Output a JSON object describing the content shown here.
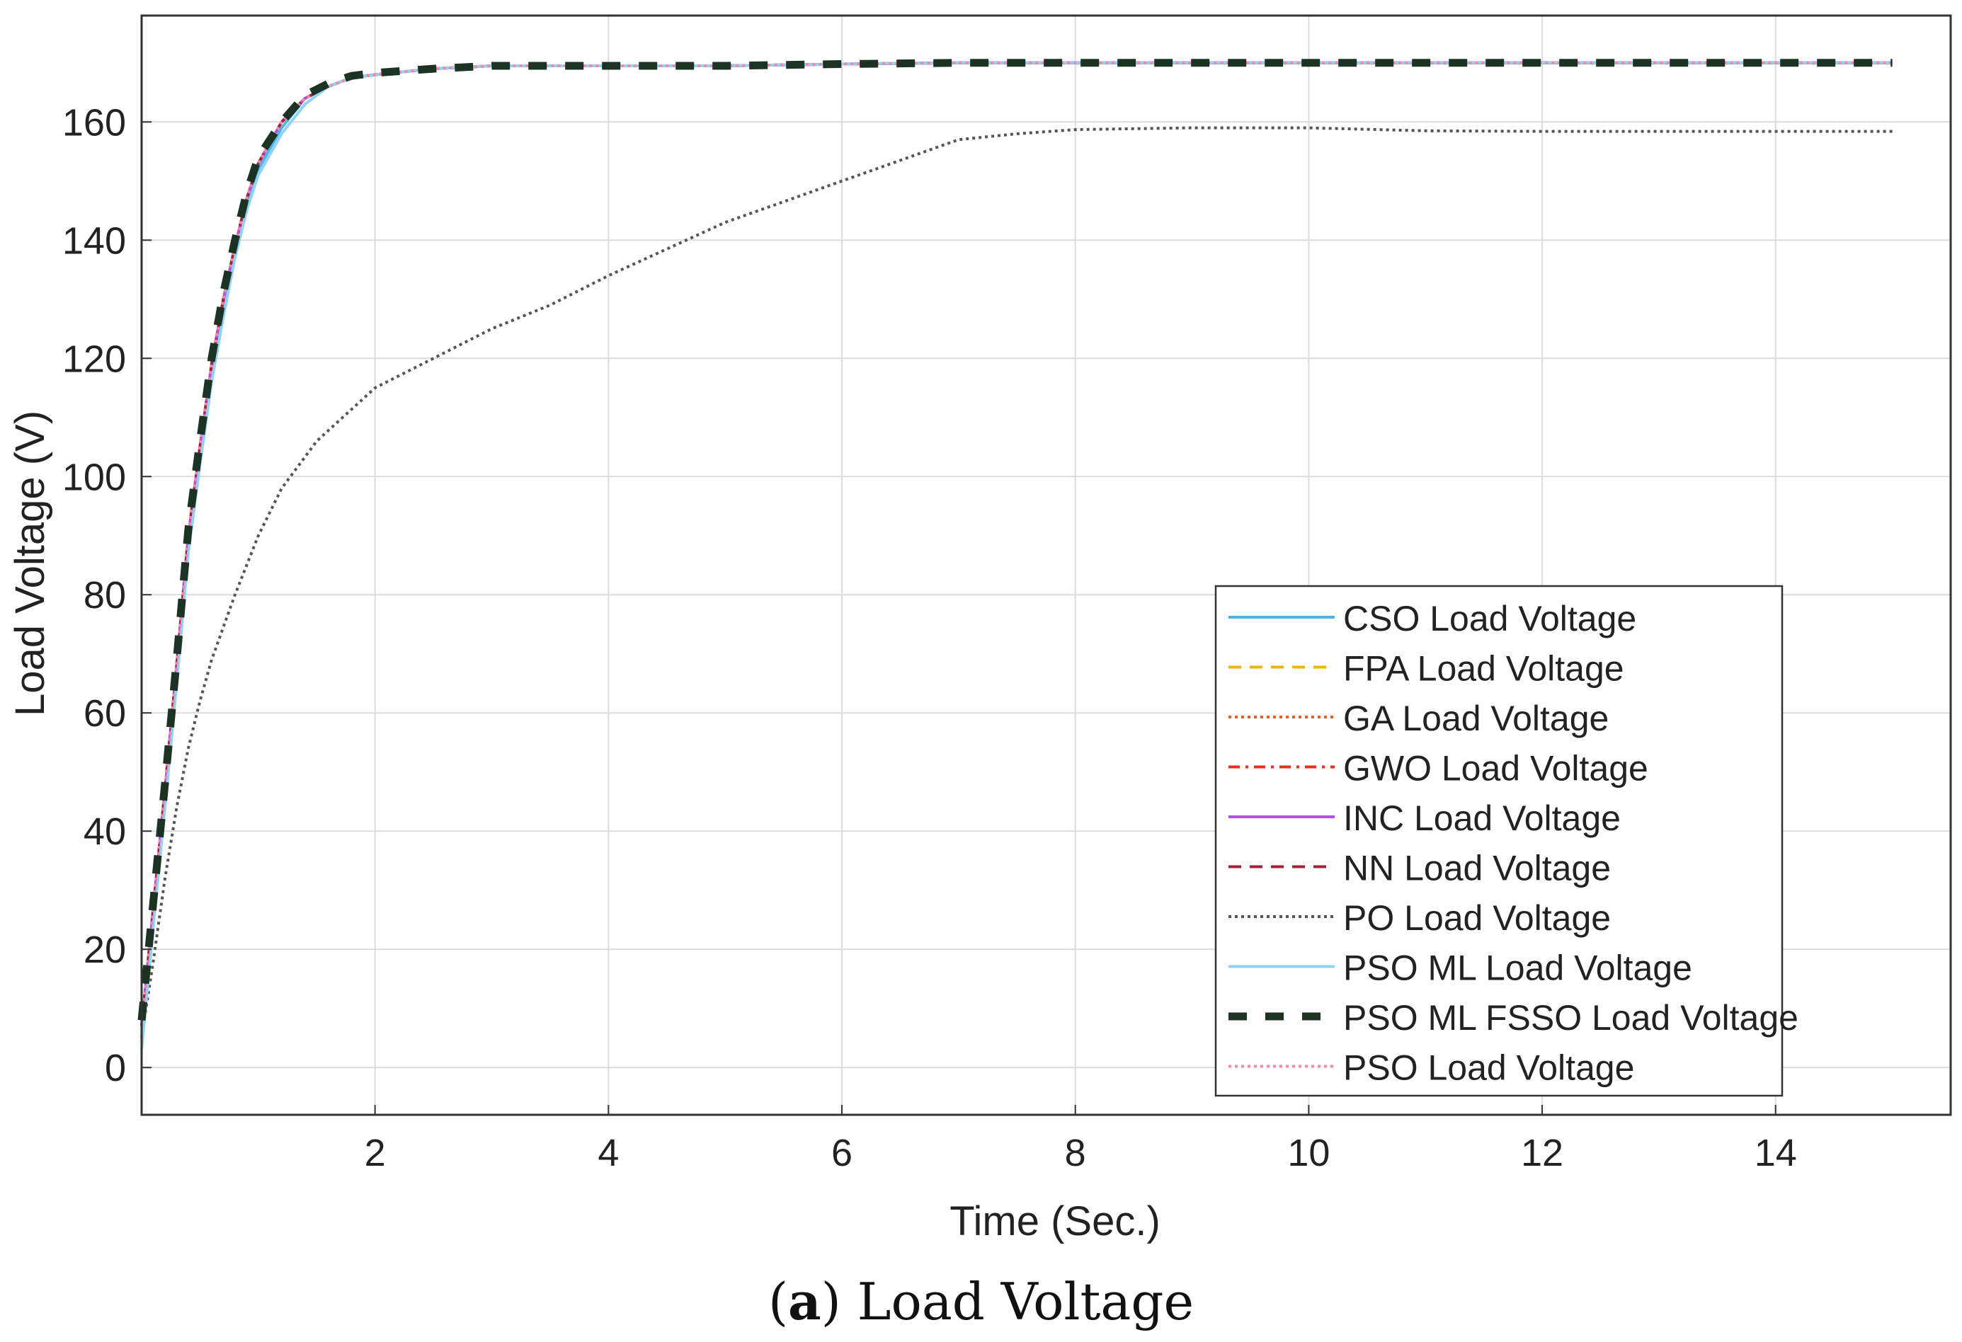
{
  "caption": {
    "prefix": "(",
    "letter": "a",
    "suffix": ") Load Voltage"
  },
  "chart_data": {
    "type": "line",
    "title": "",
    "xlabel": "Time (Sec.)",
    "ylabel": "Load Voltage (V)",
    "xlim": [
      0,
      15.5
    ],
    "ylim": [
      -8,
      178
    ],
    "xticks": [
      2,
      4,
      6,
      8,
      10,
      12,
      14
    ],
    "yticks": [
      0,
      20,
      40,
      60,
      80,
      100,
      120,
      140,
      160
    ],
    "grid": true,
    "legend_position": "bottom-right",
    "series": [
      {
        "name": "CSO Load Voltage",
        "color": "#4fb3e8",
        "style": "solid",
        "x": [
          0,
          0.1,
          0.2,
          0.3,
          0.4,
          0.5,
          0.6,
          0.7,
          0.8,
          0.9,
          1.0,
          1.2,
          1.4,
          1.6,
          1.8,
          2.0,
          2.5,
          3,
          4,
          5,
          6,
          7,
          8,
          9,
          10,
          11,
          12,
          13,
          14,
          15
        ],
        "y": [
          5,
          25,
          45,
          66,
          88,
          103,
          117,
          128,
          138,
          146,
          152,
          159,
          164,
          166,
          167.5,
          168,
          169,
          169.5,
          169.5,
          169.5,
          169.8,
          170,
          170,
          170,
          170,
          170,
          170,
          170,
          170,
          170
        ]
      },
      {
        "name": "FPA Load Voltage",
        "color": "#f0b400",
        "style": "dashed",
        "x": [
          0,
          0.1,
          0.2,
          0.3,
          0.4,
          0.5,
          0.6,
          0.7,
          0.8,
          0.9,
          1.0,
          1.2,
          1.4,
          1.6,
          1.8,
          2.0,
          2.5,
          3,
          4,
          5,
          6,
          7,
          8,
          9,
          10,
          11,
          12,
          13,
          14,
          15
        ],
        "y": [
          7,
          27,
          47,
          68,
          90,
          105,
          119,
          130,
          139,
          147,
          153,
          160,
          164,
          166,
          167.5,
          168,
          169,
          169.5,
          169.5,
          169.5,
          169.8,
          170,
          170,
          170,
          170,
          170,
          170,
          170,
          170,
          170
        ]
      },
      {
        "name": "GA Load Voltage",
        "color": "#e2622b",
        "style": "dotted",
        "x": [
          0,
          0.1,
          0.2,
          0.3,
          0.4,
          0.5,
          0.6,
          0.7,
          0.8,
          0.9,
          1.0,
          1.2,
          1.4,
          1.6,
          1.8,
          2.0,
          2.5,
          3,
          4,
          5,
          6,
          7,
          8,
          9,
          10,
          11,
          12,
          13,
          14,
          15
        ],
        "y": [
          7,
          27,
          47,
          68,
          90,
          105,
          119,
          130,
          139,
          147,
          153,
          160,
          164,
          166,
          167.5,
          168,
          169,
          169.5,
          169.5,
          169.5,
          169.8,
          170,
          170,
          170,
          170,
          170,
          170,
          170,
          170,
          170
        ]
      },
      {
        "name": "GWO Load Voltage",
        "color": "#e8301e",
        "style": "dashdot",
        "x": [
          0,
          0.1,
          0.2,
          0.3,
          0.4,
          0.5,
          0.6,
          0.7,
          0.8,
          0.9,
          1.0,
          1.2,
          1.4,
          1.6,
          1.8,
          2.0,
          2.5,
          3,
          4,
          5,
          6,
          7,
          8,
          9,
          10,
          11,
          12,
          13,
          14,
          15
        ],
        "y": [
          7,
          27,
          47,
          68,
          90,
          105,
          119,
          130,
          139,
          147,
          153,
          160,
          164,
          166,
          167.5,
          168,
          169,
          169.5,
          169.5,
          169.5,
          169.8,
          170,
          170,
          170,
          170,
          170,
          170,
          170,
          170,
          170
        ]
      },
      {
        "name": "INC Load Voltage",
        "color": "#b44fe0",
        "style": "solid",
        "x": [
          0,
          0.1,
          0.2,
          0.3,
          0.4,
          0.5,
          0.6,
          0.7,
          0.8,
          0.9,
          1.0,
          1.2,
          1.4,
          1.6,
          1.8,
          2.0,
          2.5,
          3,
          4,
          5,
          6,
          7,
          8,
          9,
          10,
          11,
          12,
          13,
          14,
          15
        ],
        "y": [
          7,
          27,
          47,
          68,
          90,
          105,
          119,
          130,
          139,
          147,
          153,
          160,
          164,
          166,
          167.5,
          168,
          169,
          169.5,
          169.5,
          169.5,
          169.8,
          170,
          170,
          170,
          170,
          170,
          170,
          170,
          170,
          170
        ]
      },
      {
        "name": "NN Load Voltage",
        "color": "#a3203a",
        "style": "dashed",
        "x": [
          0,
          0.1,
          0.2,
          0.3,
          0.4,
          0.5,
          0.6,
          0.7,
          0.8,
          0.9,
          1.0,
          1.2,
          1.4,
          1.6,
          1.8,
          2.0,
          2.5,
          3,
          4,
          5,
          6,
          7,
          8,
          9,
          10,
          11,
          12,
          13,
          14,
          15
        ],
        "y": [
          7,
          27,
          47,
          68,
          90,
          105,
          119,
          130,
          139,
          147,
          153,
          160,
          164,
          166,
          167.5,
          168,
          169,
          169.5,
          169.5,
          169.5,
          169.8,
          170,
          170,
          170,
          170,
          170,
          170,
          170,
          170,
          170
        ]
      },
      {
        "name": "PO Load Voltage",
        "color": "#555555",
        "style": "dotted",
        "x": [
          0,
          0.1,
          0.2,
          0.3,
          0.4,
          0.5,
          0.6,
          0.8,
          1.0,
          1.2,
          1.5,
          2.0,
          2.5,
          3,
          3.5,
          4,
          5,
          6,
          7,
          7.5,
          8,
          9,
          10,
          11,
          12,
          13,
          14,
          15
        ],
        "y": [
          5,
          18,
          32,
          44,
          54,
          62,
          69,
          80,
          90,
          98,
          106,
          115,
          120,
          125,
          129,
          134,
          143,
          150,
          157,
          158,
          158.7,
          159,
          159,
          158.5,
          158.4,
          158.4,
          158.4,
          158.4
        ]
      },
      {
        "name": "PSO ML Load Voltage",
        "color": "#8fd3f8",
        "style": "solid",
        "x": [
          0,
          0.1,
          0.2,
          0.3,
          0.4,
          0.5,
          0.6,
          0.7,
          0.8,
          0.9,
          1.0,
          1.2,
          1.4,
          1.6,
          1.8,
          2.0,
          2.5,
          3,
          4,
          5,
          6,
          7,
          8,
          9,
          10,
          11,
          12,
          13,
          14,
          15
        ],
        "y": [
          3,
          24,
          44,
          65,
          87,
          102,
          116,
          127,
          137,
          145,
          151,
          158,
          163,
          166,
          167.5,
          168,
          169,
          169.5,
          169.5,
          169.5,
          169.8,
          170,
          170,
          170,
          170,
          170,
          170,
          170,
          170,
          170
        ]
      },
      {
        "name": "PSO ML FSSO Load Voltage",
        "color": "#1c3324",
        "style": "bold-dashed",
        "x": [
          0,
          0.1,
          0.2,
          0.3,
          0.4,
          0.5,
          0.6,
          0.7,
          0.8,
          0.9,
          1.0,
          1.2,
          1.4,
          1.6,
          1.8,
          2.0,
          2.5,
          3,
          4,
          5,
          6,
          7,
          8,
          9,
          10,
          11,
          12,
          13,
          14,
          15
        ],
        "y": [
          8,
          28,
          48,
          69,
          91,
          106,
          120,
          131,
          140,
          148,
          154,
          160,
          164.5,
          166.5,
          167.8,
          168.3,
          169,
          169.5,
          169.5,
          169.5,
          169.8,
          170,
          170,
          170,
          170,
          170,
          170,
          170,
          170,
          170
        ]
      },
      {
        "name": "PSO Load Voltage",
        "color": "#f08aa8",
        "style": "dotted",
        "x": [
          0,
          0.1,
          0.2,
          0.3,
          0.4,
          0.5,
          0.6,
          0.7,
          0.8,
          0.9,
          1.0,
          1.2,
          1.4,
          1.6,
          1.8,
          2.0,
          2.5,
          3,
          4,
          5,
          6,
          7,
          8,
          9,
          10,
          11,
          12,
          13,
          14,
          15
        ],
        "y": [
          7,
          27,
          47,
          68,
          90,
          105,
          119,
          130,
          139,
          147,
          153,
          160,
          164,
          166,
          167.5,
          168,
          169,
          169.5,
          169.5,
          169.5,
          169.8,
          170,
          170,
          170,
          170,
          170,
          170,
          170,
          170,
          170
        ]
      }
    ]
  }
}
